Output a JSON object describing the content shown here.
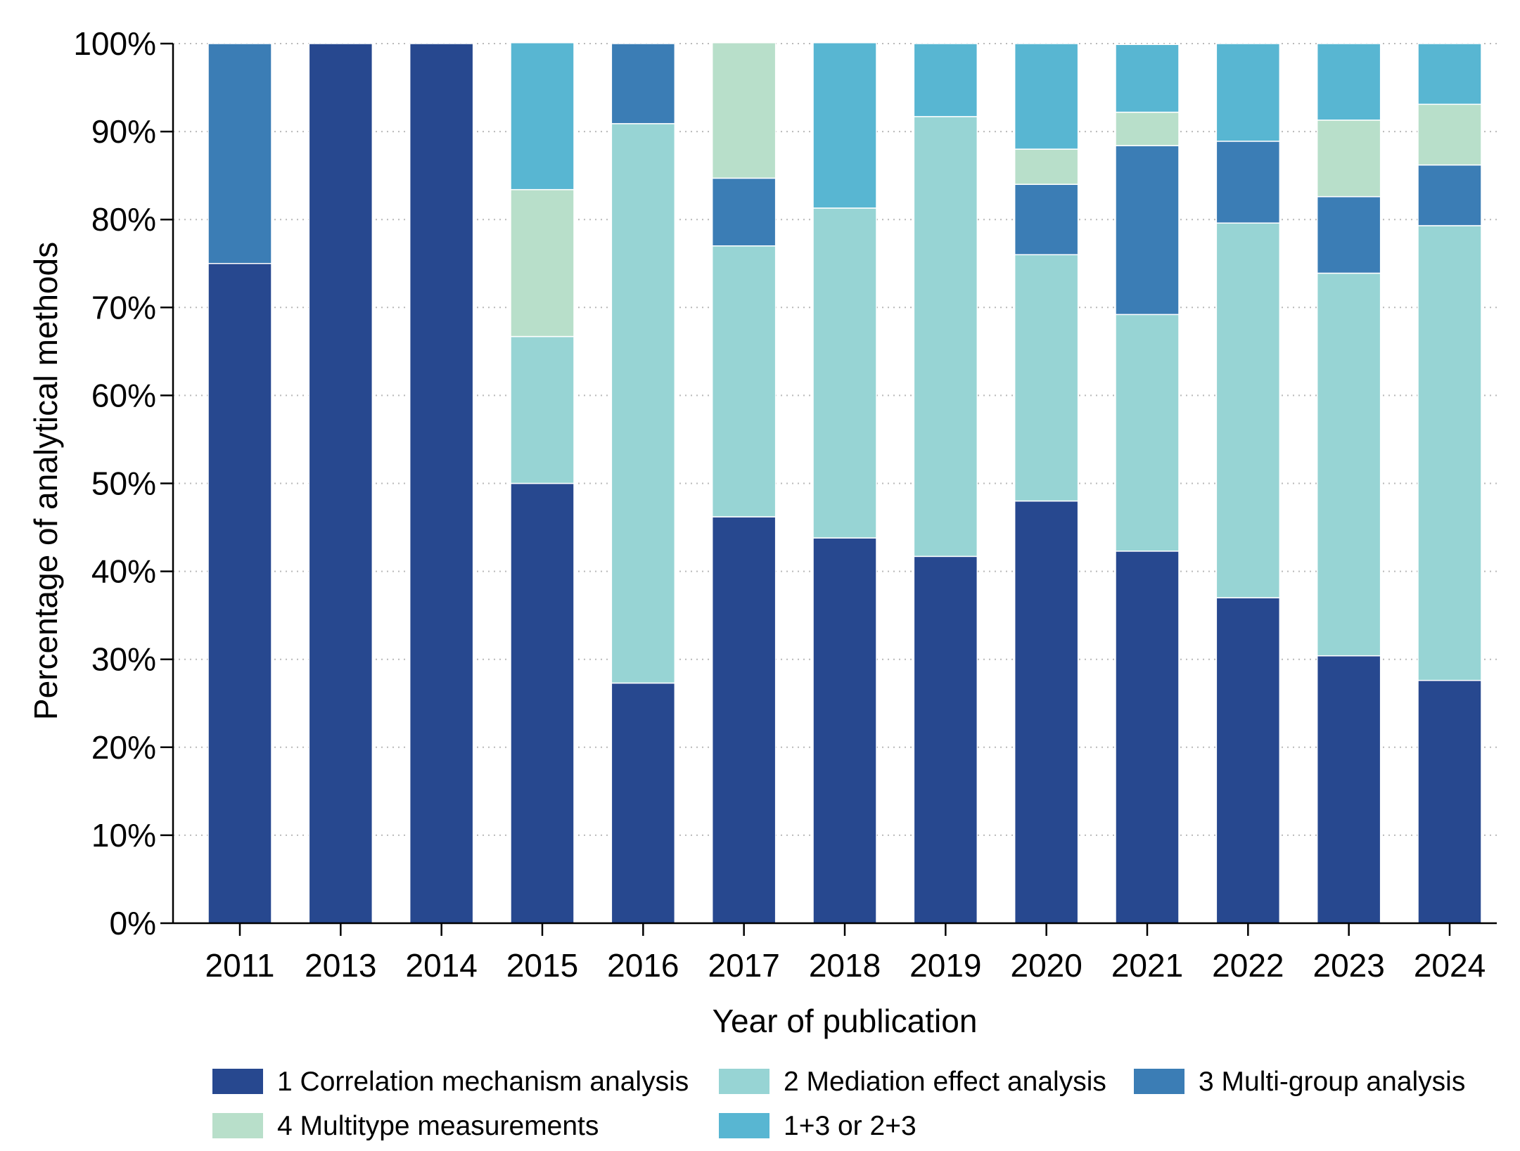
{
  "chart_data": {
    "type": "bar",
    "stacked": true,
    "title": "",
    "xlabel": "Year of publication",
    "ylabel": "Percentage of analytical methods",
    "ylim": [
      0,
      100
    ],
    "yticks": [
      "0%",
      "10%",
      "20%",
      "30%",
      "40%",
      "50%",
      "60%",
      "70%",
      "80%",
      "90%",
      "100%"
    ],
    "grid": "horizontal dotted",
    "legend_position": "bottom",
    "categories": [
      "2011",
      "2013",
      "2014",
      "2015",
      "2016",
      "2017",
      "2018",
      "2019",
      "2020",
      "2021",
      "2022",
      "2023",
      "2024"
    ],
    "series": [
      {
        "name": "1 Correlation mechanism analysis",
        "color": "#27488f",
        "values": [
          75,
          100,
          100,
          50,
          27.3,
          46.2,
          43.8,
          41.7,
          48,
          42.3,
          37,
          30.4,
          27.6
        ]
      },
      {
        "name": "2 Mediation effect analysis",
        "color": "#97d4d4",
        "values": [
          0,
          0,
          0,
          16.7,
          63.6,
          30.8,
          37.5,
          50,
          28,
          26.9,
          42.6,
          43.5,
          51.7
        ]
      },
      {
        "name": "3 Multi-group analysis",
        "color": "#3b7db5",
        "values": [
          25,
          0,
          0,
          0,
          9.1,
          7.7,
          0,
          0,
          8,
          19.2,
          9.3,
          8.7,
          6.9
        ]
      },
      {
        "name": "4 Multitype measurements",
        "color": "#b8dfca",
        "values": [
          0,
          0,
          0,
          16.7,
          0,
          15.4,
          0,
          0,
          4,
          3.8,
          0,
          8.7,
          6.9
        ]
      },
      {
        "name": "1+3 or 2+3",
        "color": "#58b6d2",
        "values": [
          0,
          0,
          0,
          16.7,
          0,
          0,
          18.8,
          8.3,
          12,
          7.7,
          11.1,
          8.7,
          6.9
        ]
      }
    ]
  }
}
